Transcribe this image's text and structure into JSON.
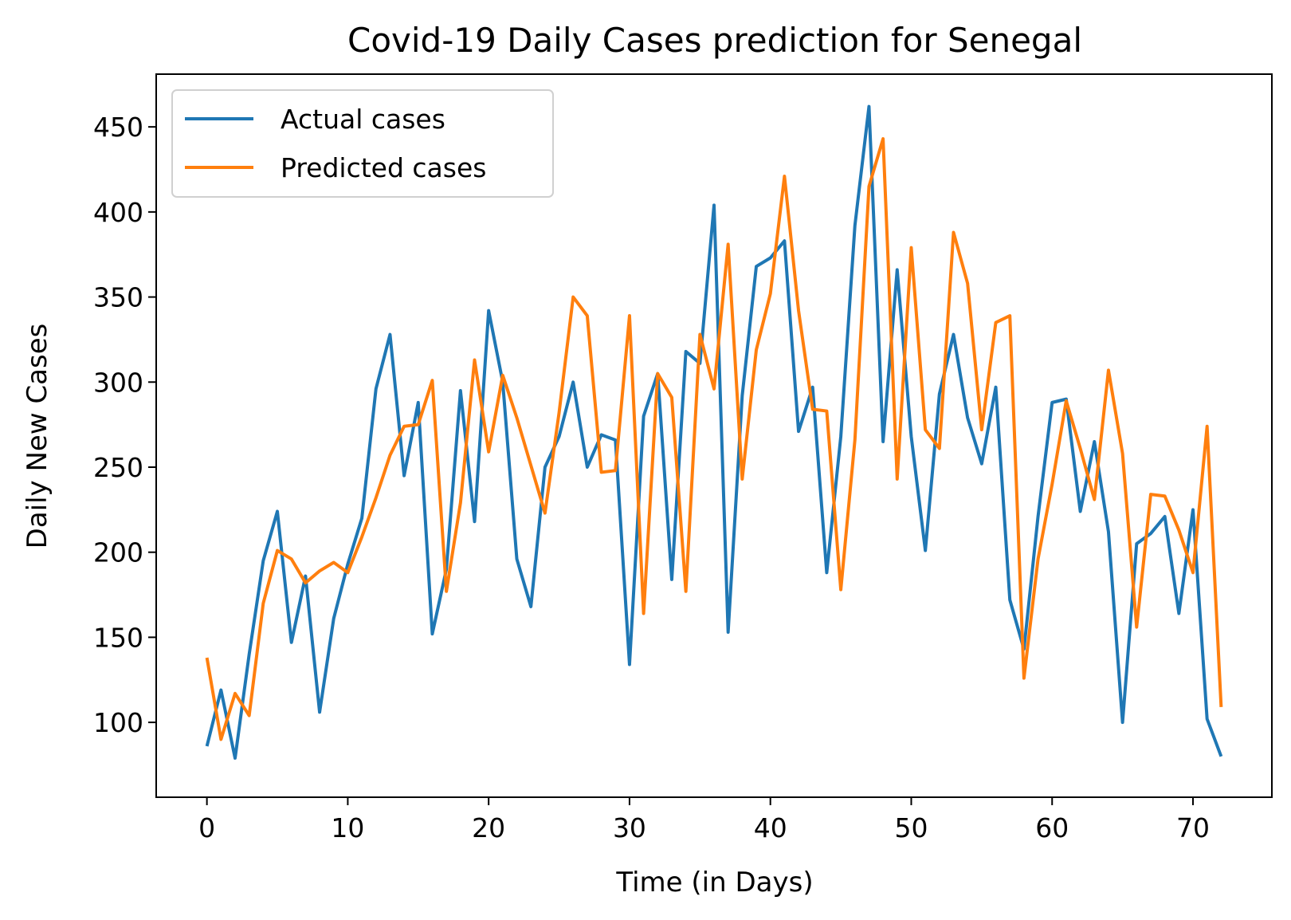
{
  "chart_data": {
    "type": "line",
    "title": "Covid-19 Daily Cases prediction for Senegal",
    "xlabel": "Time (in Days)",
    "ylabel": "Daily New Cases",
    "xlim": [
      -3.6,
      75.6
    ],
    "ylim": [
      56,
      481
    ],
    "xticks": [
      0,
      10,
      20,
      30,
      40,
      50,
      60,
      70
    ],
    "yticks": [
      100,
      150,
      200,
      250,
      300,
      350,
      400,
      450
    ],
    "grid": false,
    "legend_position": "top-left",
    "series": [
      {
        "name": "Actual cases",
        "color": "#1f77b4",
        "values": [
          86,
          119,
          79,
          140,
          195,
          224,
          147,
          186,
          106,
          161,
          193,
          220,
          296,
          328,
          245,
          288,
          152,
          190,
          295,
          218,
          342,
          300,
          196,
          168,
          250,
          268,
          300,
          250,
          269,
          266,
          134,
          280,
          305,
          184,
          318,
          311,
          404,
          153,
          292,
          368,
          373,
          383,
          271,
          297,
          188,
          268,
          392,
          462,
          265,
          366,
          268,
          201,
          293,
          328,
          279,
          252,
          297,
          172,
          143,
          221,
          288,
          290,
          224,
          265,
          212,
          100,
          205,
          211,
          221,
          164,
          225,
          102,
          80
        ]
      },
      {
        "name": "Predicted cases",
        "color": "#ff7f0e",
        "values": [
          138,
          90,
          117,
          104,
          170,
          201,
          196,
          182,
          189,
          194,
          188,
          209,
          232,
          257,
          274,
          275,
          301,
          177,
          229,
          313,
          259,
          304,
          279,
          251,
          223,
          282,
          350,
          339,
          247,
          248,
          339,
          164,
          305,
          291,
          177,
          328,
          296,
          381,
          243,
          319,
          352,
          421,
          342,
          284,
          283,
          178,
          266,
          415,
          443,
          243,
          379,
          272,
          261,
          388,
          358,
          272,
          335,
          339,
          126,
          196,
          240,
          289,
          261,
          231,
          307,
          258,
          156,
          234,
          233,
          213,
          188,
          274,
          109
        ]
      }
    ]
  }
}
